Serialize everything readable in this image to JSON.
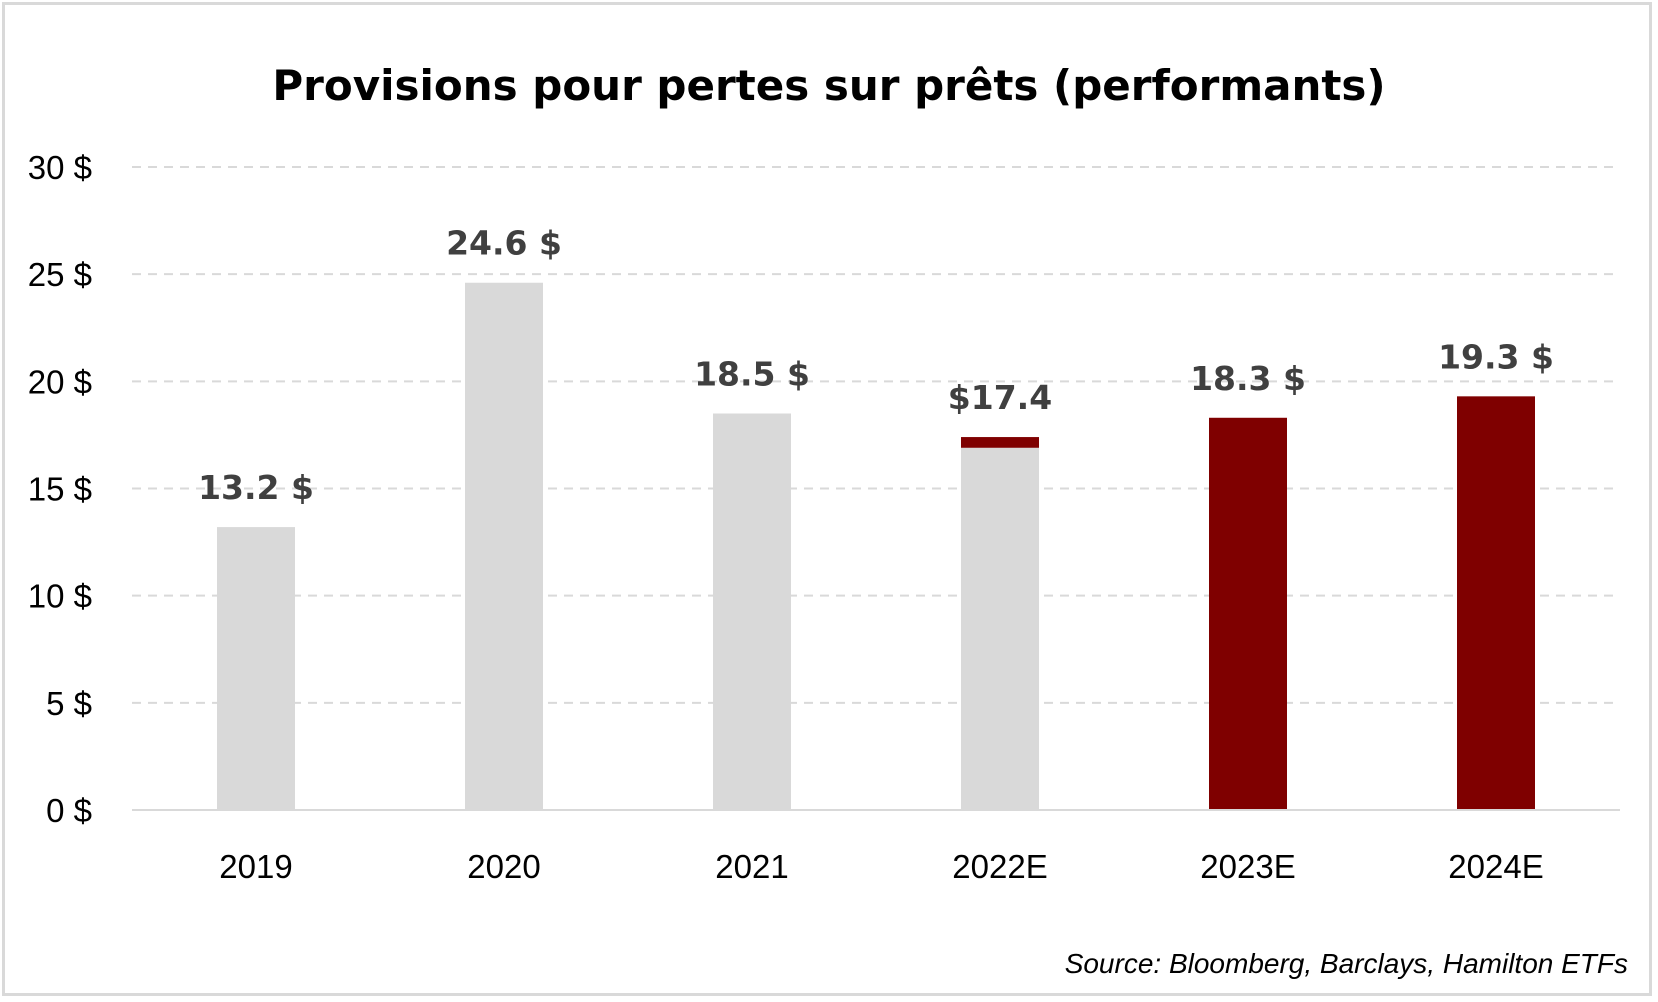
{
  "chart_data": {
    "type": "bar",
    "title": "Provisions pour pertes sur prêts (performants)",
    "categories": [
      "2019",
      "2020",
      "2021",
      "2022E",
      "2023E",
      "2024E"
    ],
    "values": [
      13.2,
      24.6,
      18.5,
      17.4,
      18.3,
      19.3
    ],
    "segments": [
      {
        "gray": 13.2,
        "red": 0
      },
      {
        "gray": 24.6,
        "red": 0
      },
      {
        "gray": 18.5,
        "red": 0
      },
      {
        "gray": 16.9,
        "red": 0.5
      },
      {
        "gray": 0,
        "red": 18.3
      },
      {
        "gray": 0,
        "red": 19.3
      }
    ],
    "data_labels": [
      "13.2 $",
      "24.6 $",
      "18.5 $",
      "$17.4",
      "18.3 $",
      "19.3 $"
    ],
    "yticks": [
      0,
      5,
      10,
      15,
      20,
      25,
      30
    ],
    "ytick_labels": [
      "0 $",
      "5 $",
      "10 $",
      "15 $",
      "20 $",
      "25 $",
      "30 $"
    ],
    "ylim": [
      0,
      30
    ],
    "xlabel": "",
    "ylabel": "",
    "grid": true,
    "colors": {
      "gray": "#d9d9d9",
      "red": "#7f0000",
      "grid": "#d9d9d9",
      "axis": "#d9d9d9"
    },
    "source": "Source: Bloomberg, Barclays, Hamilton ETFs"
  }
}
